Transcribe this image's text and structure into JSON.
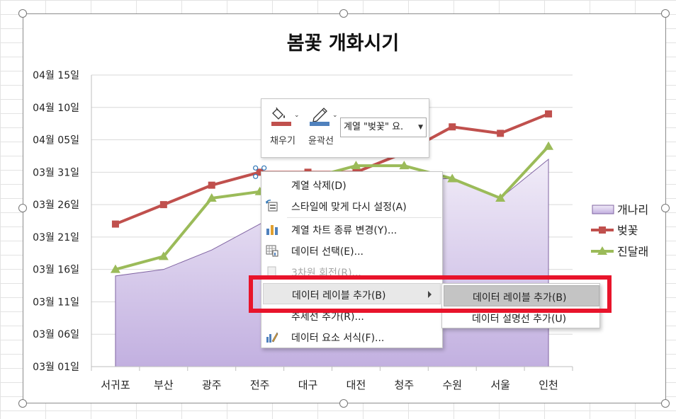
{
  "chart_data": {
    "type": "area",
    "title": "봄꽃 개화시기",
    "categories": [
      "서귀포",
      "부산",
      "광주",
      "전주",
      "대구",
      "대전",
      "청주",
      "수원",
      "서울",
      "인천"
    ],
    "y_tick_labels": [
      "04월 15일",
      "04월 10일",
      "04월 05일",
      "03월 31일",
      "03월 26일",
      "03월 21일",
      "03월 16일",
      "03월 11일",
      "03월 06일",
      "03월 01일"
    ],
    "ylim": [
      "03-01",
      "04-15"
    ],
    "legend_position": "right",
    "series": [
      {
        "name": "개나리",
        "kind": "area",
        "color": "#b7a1d8",
        "values": [
          "03-15",
          "03-16",
          "03-19",
          "03-23",
          "03-27",
          "03-29",
          "03-30",
          "03-30",
          "03-27",
          "04-02"
        ]
      },
      {
        "name": "벚꽃",
        "kind": "line",
        "marker": "square",
        "color": "#c0504d",
        "values": [
          "03-23",
          "03-26",
          "03-29",
          "03-31",
          "03-31",
          "03-31",
          "04-03",
          "04-07",
          "04-06",
          "04-09"
        ]
      },
      {
        "name": "진달래",
        "kind": "line",
        "marker": "triangle",
        "color": "#9bbb59",
        "values": [
          "03-16",
          "03-18",
          "03-27",
          "03-28",
          "03-30",
          "04-01",
          "04-01",
          "03-30",
          "03-27",
          "04-04"
        ]
      }
    ]
  },
  "mini_toolbar": {
    "fill_label": "채우기",
    "outline_label": "윤곽선",
    "series_select_value": "계열 \"벚꽃\" 요.",
    "fill_icon": "paint-bucket-icon",
    "outline_icon": "pen-outline-icon"
  },
  "context_menu": {
    "items": [
      {
        "label": "계열 삭제(D)",
        "icon": ""
      },
      {
        "label": "스타일에 맞게 다시 설정(A)",
        "icon": "reset-style-icon"
      },
      {
        "label": "계열 차트 종류 변경(Y)...",
        "icon": "chart-type-icon"
      },
      {
        "label": "데이터 선택(E)...",
        "icon": "select-data-icon"
      },
      {
        "label": "3차원 회전(R)...",
        "icon": "rotate-3d-icon"
      },
      {
        "label": "데이터 레이블 추가(B)",
        "icon": ""
      },
      {
        "label": "추세선 추가(R)...",
        "icon": ""
      },
      {
        "label": "데이터 요소 서식(F)...",
        "icon": "format-point-icon"
      }
    ]
  },
  "submenu": {
    "items": [
      {
        "label": "데이터 레이블 추가(B)"
      },
      {
        "label": "데이터 설명선 추가(U)"
      }
    ]
  },
  "colors": {
    "highlight_box": "#e8142b"
  }
}
